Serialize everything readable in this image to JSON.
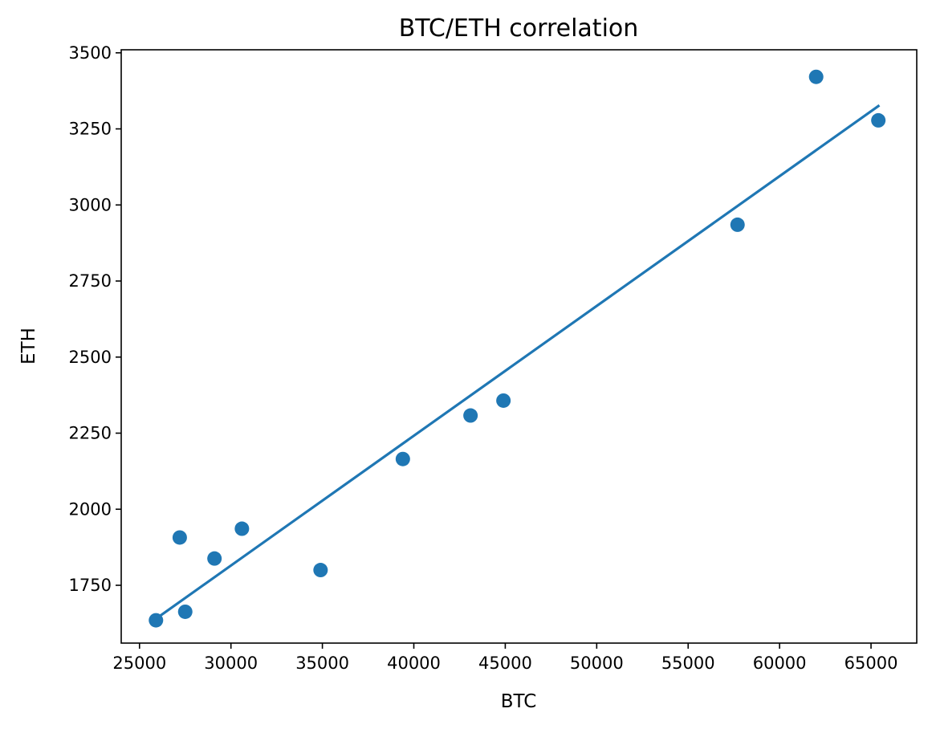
{
  "chart_data": {
    "type": "scatter",
    "title": "BTC/ETH correlation",
    "xlabel": "BTC",
    "ylabel": "ETH",
    "xlim": [
      24000,
      67500
    ],
    "ylim": [
      1560,
      3510
    ],
    "xticks": [
      25000,
      30000,
      35000,
      40000,
      45000,
      50000,
      55000,
      60000,
      65000
    ],
    "yticks": [
      1750,
      2000,
      2250,
      2500,
      2750,
      3000,
      3250,
      3500
    ],
    "grid": false,
    "color": "#1f77b4",
    "points": [
      {
        "x": 25900,
        "y": 1635
      },
      {
        "x": 27200,
        "y": 1907
      },
      {
        "x": 27500,
        "y": 1663
      },
      {
        "x": 29100,
        "y": 1838
      },
      {
        "x": 30600,
        "y": 1936
      },
      {
        "x": 34900,
        "y": 1800
      },
      {
        "x": 39400,
        "y": 2165
      },
      {
        "x": 43100,
        "y": 2308
      },
      {
        "x": 44900,
        "y": 2357
      },
      {
        "x": 57700,
        "y": 2935
      },
      {
        "x": 62000,
        "y": 3421
      },
      {
        "x": 65400,
        "y": 3278
      }
    ],
    "fit_line": {
      "x": [
        25900,
        65400
      ],
      "y": [
        1640,
        3325
      ]
    }
  }
}
